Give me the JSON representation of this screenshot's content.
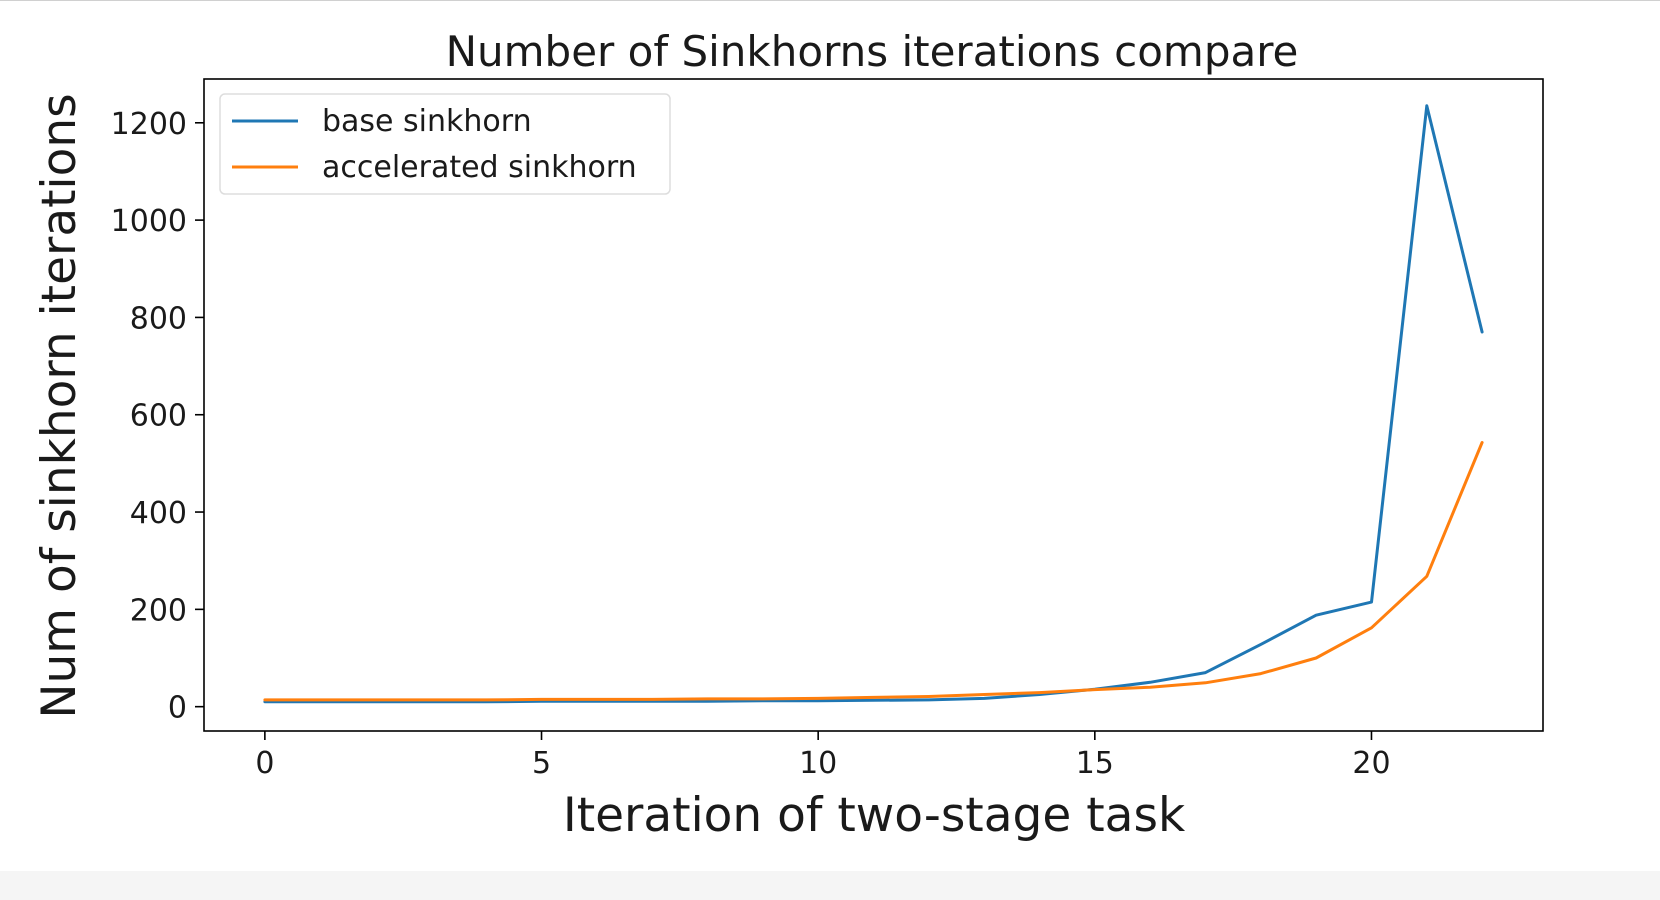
{
  "chart_data": {
    "type": "line",
    "title": "Number of Sinkhorns iterations compare",
    "xlabel": "Iteration of two-stage task",
    "ylabel": "Num of sinkhorn iterations",
    "x": [
      0,
      1,
      2,
      3,
      4,
      5,
      6,
      7,
      8,
      9,
      10,
      11,
      12,
      13,
      14,
      15,
      16,
      17,
      18,
      19,
      20,
      21,
      22
    ],
    "xlim": [
      -1.1,
      23.1
    ],
    "ylim": [
      -50,
      1290
    ],
    "xticks": [
      0,
      5,
      10,
      15,
      20
    ],
    "yticks": [
      0,
      200,
      400,
      600,
      800,
      1000,
      1200
    ],
    "grid": false,
    "legend_position": "upper-left",
    "series": [
      {
        "name": "base sinkhorn",
        "color": "#1f77b4",
        "values": [
          10,
          10,
          10,
          10,
          10,
          11,
          11,
          11,
          11,
          12,
          12,
          13,
          14,
          17,
          25,
          36,
          50,
          70,
          128,
          188,
          215,
          1235,
          770
        ]
      },
      {
        "name": "accelerated sinkhorn",
        "color": "#ff7f0e",
        "values": [
          14,
          14,
          14,
          14,
          14,
          15,
          15,
          15,
          16,
          16,
          17,
          19,
          21,
          25,
          29,
          35,
          40,
          49,
          68,
          100,
          162,
          268,
          543
        ]
      }
    ]
  }
}
